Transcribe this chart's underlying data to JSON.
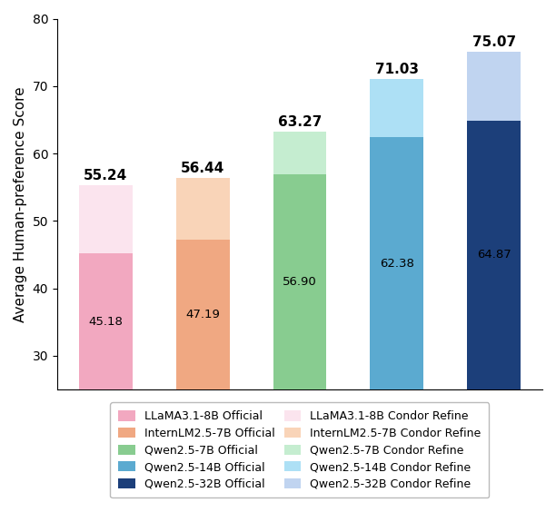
{
  "groups": [
    {
      "label": "LLaMA3.1-8B",
      "official_val": 45.18,
      "refine_val": 55.24,
      "official_color": "#F2A8C0",
      "refine_color": "#FBE4EE",
      "label_official": "LLaMA3.1-8B Official",
      "label_refine": "LLaMA3.1-8B Condor Refine"
    },
    {
      "label": "InternLM2.5-7B",
      "official_val": 47.19,
      "refine_val": 56.44,
      "official_color": "#F0A882",
      "refine_color": "#F9D4B8",
      "label_official": "InternLM2.5-7B Official",
      "label_refine": "InternLM2.5-7B Condor Refine"
    },
    {
      "label": "Qwen2.5-7B",
      "official_val": 56.9,
      "refine_val": 63.27,
      "official_color": "#88CC90",
      "refine_color": "#C5EDD0",
      "label_official": "Qwen2.5-7B Official",
      "label_refine": "Qwen2.5-7B Condor Refine"
    },
    {
      "label": "Qwen2.5-14B",
      "official_val": 62.38,
      "refine_val": 71.03,
      "official_color": "#5BAAD0",
      "refine_color": "#ADE0F5",
      "label_official": "Qwen2.5-14B Official",
      "label_refine": "Qwen2.5-14B Condor Refine"
    },
    {
      "label": "Qwen2.5-32B",
      "official_val": 64.87,
      "refine_val": 75.07,
      "official_color": "#1C3F7A",
      "refine_color": "#C0D4F0",
      "label_official": "Qwen2.5-32B Official",
      "label_refine": "Qwen2.5-32B Condor Refine"
    }
  ],
  "ylabel": "Average Human-preference Score",
  "ylim": [
    25,
    80
  ],
  "yticks": [
    30,
    40,
    50,
    60,
    70,
    80
  ],
  "bar_width": 0.55,
  "background_color": "#FFFFFF"
}
